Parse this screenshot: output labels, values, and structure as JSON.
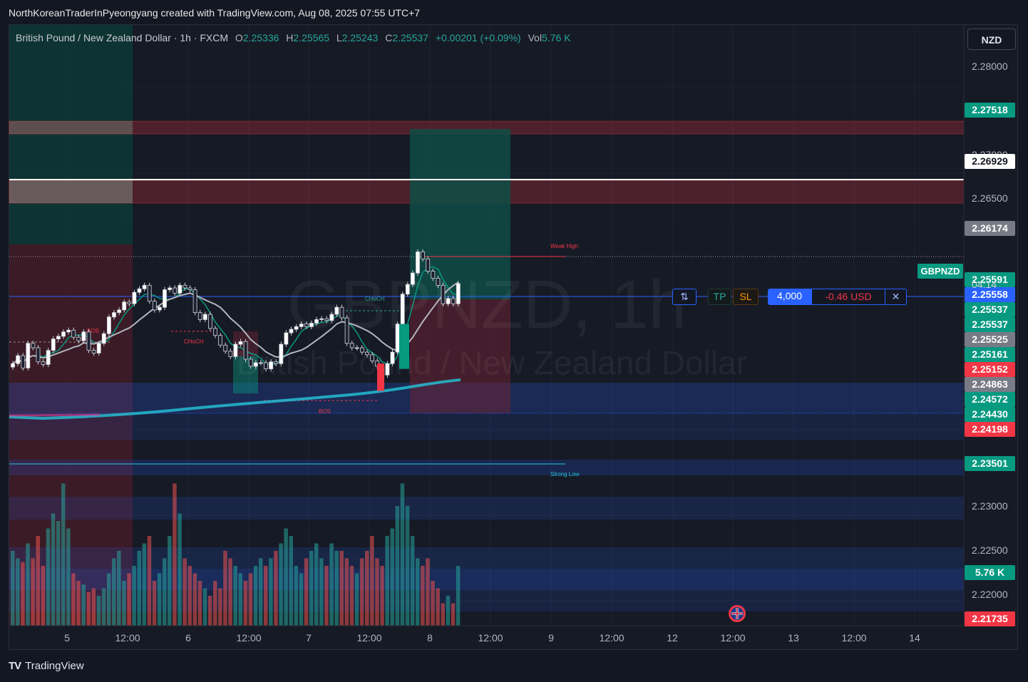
{
  "caption": "NorthKoreanTraderInPyeongyang created with TradingView.com, Aug 08, 2025 07:55 UTC+7",
  "legend": {
    "symbol": "British Pound / New Zealand Dollar · 1h · FXCM",
    "o_label": "O",
    "o": "2.25336",
    "h_label": "H",
    "h": "2.25565",
    "l_label": "L",
    "l": "2.25243",
    "c_label": "C",
    "c": "2.25537",
    "change": "+0.00201 (+0.09%)",
    "vol_label": "Vol",
    "vol": "5.76 K"
  },
  "currency_button": "NZD",
  "watermark": {
    "line1": "GBPNZD, 1h",
    "line2": "British Pound / New Zealand Dollar"
  },
  "symbol_tag": "GBPNZD",
  "countdown": "04:14",
  "trade_panel": {
    "tp": "TP",
    "sl": "SL",
    "quantity": "4,000",
    "pnl": "-0.46 USD",
    "reverse_icon": "swap-icon",
    "close_icon": "close-icon"
  },
  "annotations": {
    "weak_high": "Weak High",
    "strong_low": "Strong Low",
    "bos": "BOS",
    "choch": "CHoCH"
  },
  "brand": {
    "logo": "TV",
    "name": "TradingView"
  },
  "colors": {
    "background": "#161a25",
    "up": "#26a69a",
    "down": "#ef5350",
    "supply": "#f2364533",
    "demand": "#2962ff33",
    "ema_fast": "#089981",
    "ema_slow": "#b2b5be",
    "ma_long": "#26c6da"
  },
  "price_tags": [
    {
      "price": 2.27518,
      "label": "2.27518",
      "color": "#089981"
    },
    {
      "price": 2.26929,
      "label": "2.26929",
      "color": "#ffffff"
    },
    {
      "price": 2.26174,
      "label": "2.26174",
      "color": "#787b86"
    },
    {
      "price": 2.25591,
      "label": "2.25591",
      "color": "#089981"
    },
    {
      "price": 2.25558,
      "label": "2.25558",
      "color": "#2962ff"
    },
    {
      "price": 2.25537,
      "label": "2.25537",
      "color": "#089981"
    },
    {
      "price": 2.25537,
      "label": "2.25537",
      "color": "#089981"
    },
    {
      "price": 2.25525,
      "label": "2.25525",
      "color": "#787b86"
    },
    {
      "price": 2.25161,
      "label": "2.25161",
      "color": "#089981"
    },
    {
      "price": 2.25152,
      "label": "2.25152",
      "color": "#f23645"
    },
    {
      "price": 2.24863,
      "label": "2.24863",
      "color": "#787b86"
    },
    {
      "price": 2.24572,
      "label": "2.24572",
      "color": "#089981"
    },
    {
      "price": 2.2443,
      "label": "2.24430",
      "color": "#089981"
    },
    {
      "price": 2.24198,
      "label": "2.24198",
      "color": "#f23645"
    },
    {
      "price": 2.23501,
      "label": "2.23501",
      "color": "#089981"
    },
    {
      "label": "5.76 K",
      "color": "#089981"
    },
    {
      "price": 2.21735,
      "label": "2.21735",
      "color": "#f23645"
    }
  ],
  "chart_data": {
    "type": "candlestick",
    "symbol": "GBPNZD",
    "timeframe": "1h",
    "y_axis": {
      "ticks": [
        {
          "value": 2.28,
          "label": "2.28000"
        },
        {
          "value": 2.275,
          "label": "2.27500"
        },
        {
          "value": 2.27,
          "label": "2.27000"
        },
        {
          "value": 2.265,
          "label": "2.26500"
        },
        {
          "value": 2.24,
          "label": "2.24000"
        },
        {
          "value": 2.23,
          "label": "2.23000"
        },
        {
          "value": 2.225,
          "label": "2.22500"
        },
        {
          "value": 2.22,
          "label": "2.22000"
        }
      ],
      "range": [
        2.2165,
        2.2848
      ]
    },
    "x_axis": {
      "ticks": [
        "5",
        "12:00",
        "6",
        "12:00",
        "7",
        "12:00",
        "8",
        "12:00",
        "9",
        "12:00",
        "12",
        "12:00",
        "13",
        "12:00",
        "14"
      ]
    },
    "candles_close": [
      2.2463,
      2.2472,
      2.2458,
      2.2486,
      2.2481,
      2.2465,
      2.2462,
      2.2478,
      2.2491,
      2.2494,
      2.2499,
      2.2501,
      2.2493,
      2.2489,
      2.2499,
      2.2478,
      2.2475,
      2.2486,
      2.2497,
      2.2516,
      2.2521,
      2.2524,
      2.2533,
      2.2531,
      2.2544,
      2.2548,
      2.2552,
      2.2534,
      2.2524,
      2.2527,
      2.2547,
      2.2549,
      2.2543,
      2.2552,
      2.2549,
      2.2547,
      2.2521,
      2.2513,
      2.2519,
      2.2503,
      2.2495,
      2.2484,
      2.2477,
      2.2471,
      2.2485,
      2.2488,
      2.2468,
      2.246,
      2.2464,
      2.2464,
      2.2457,
      2.2465,
      2.2463,
      2.2485,
      2.2498,
      2.2502,
      2.2505,
      2.2508,
      2.2505,
      2.2509,
      2.2513,
      2.2514,
      2.2512,
      2.2519,
      2.2527,
      2.2515,
      2.2486,
      2.2481,
      2.2481,
      2.2476,
      2.2473,
      2.2466,
      2.246,
      2.245,
      2.2463,
      2.2476,
      2.2508,
      2.2542,
      2.2553,
      2.2566,
      2.259,
      2.2582,
      2.2568,
      2.256,
      2.2552,
      2.2531,
      2.2537,
      2.2531,
      2.2554
    ],
    "volume": [
      1.0,
      0.9,
      0.85,
      1.1,
      0.9,
      1.2,
      0.8,
      1.3,
      1.5,
      1.4,
      1.9,
      1.3,
      0.7,
      0.6,
      0.55,
      0.45,
      0.5,
      0.4,
      0.5,
      0.7,
      0.9,
      1.0,
      0.6,
      0.7,
      0.8,
      1.0,
      1.1,
      1.2,
      0.6,
      0.7,
      0.9,
      1.2,
      1.9,
      1.5,
      0.9,
      0.8,
      0.7,
      0.6,
      0.5,
      0.4,
      0.6,
      0.5,
      1.0,
      0.9,
      0.8,
      0.7,
      0.6,
      0.7,
      0.8,
      0.9,
      0.8,
      0.9,
      1.0,
      1.1,
      1.3,
      1.2,
      0.8,
      0.7,
      0.9,
      1.0,
      1.1,
      0.9,
      0.8,
      1.1,
      1.0,
      1.0,
      0.9,
      0.8,
      0.7,
      0.9,
      1.0,
      1.2,
      0.9,
      0.8,
      1.2,
      1.3,
      1.6,
      1.9,
      1.6,
      1.2,
      0.9,
      0.8,
      0.9,
      0.6,
      0.5,
      0.3,
      0.4,
      0.3,
      0.8
    ],
    "position": {
      "entry": 2.25558,
      "take_profit": 2.27518,
      "stop_loss": 2.24198
    },
    "levels": {
      "weak_high": 2.25591,
      "strong_low": 2.23501,
      "white_line": 2.26929
    },
    "legend": "none",
    "grid": true
  }
}
